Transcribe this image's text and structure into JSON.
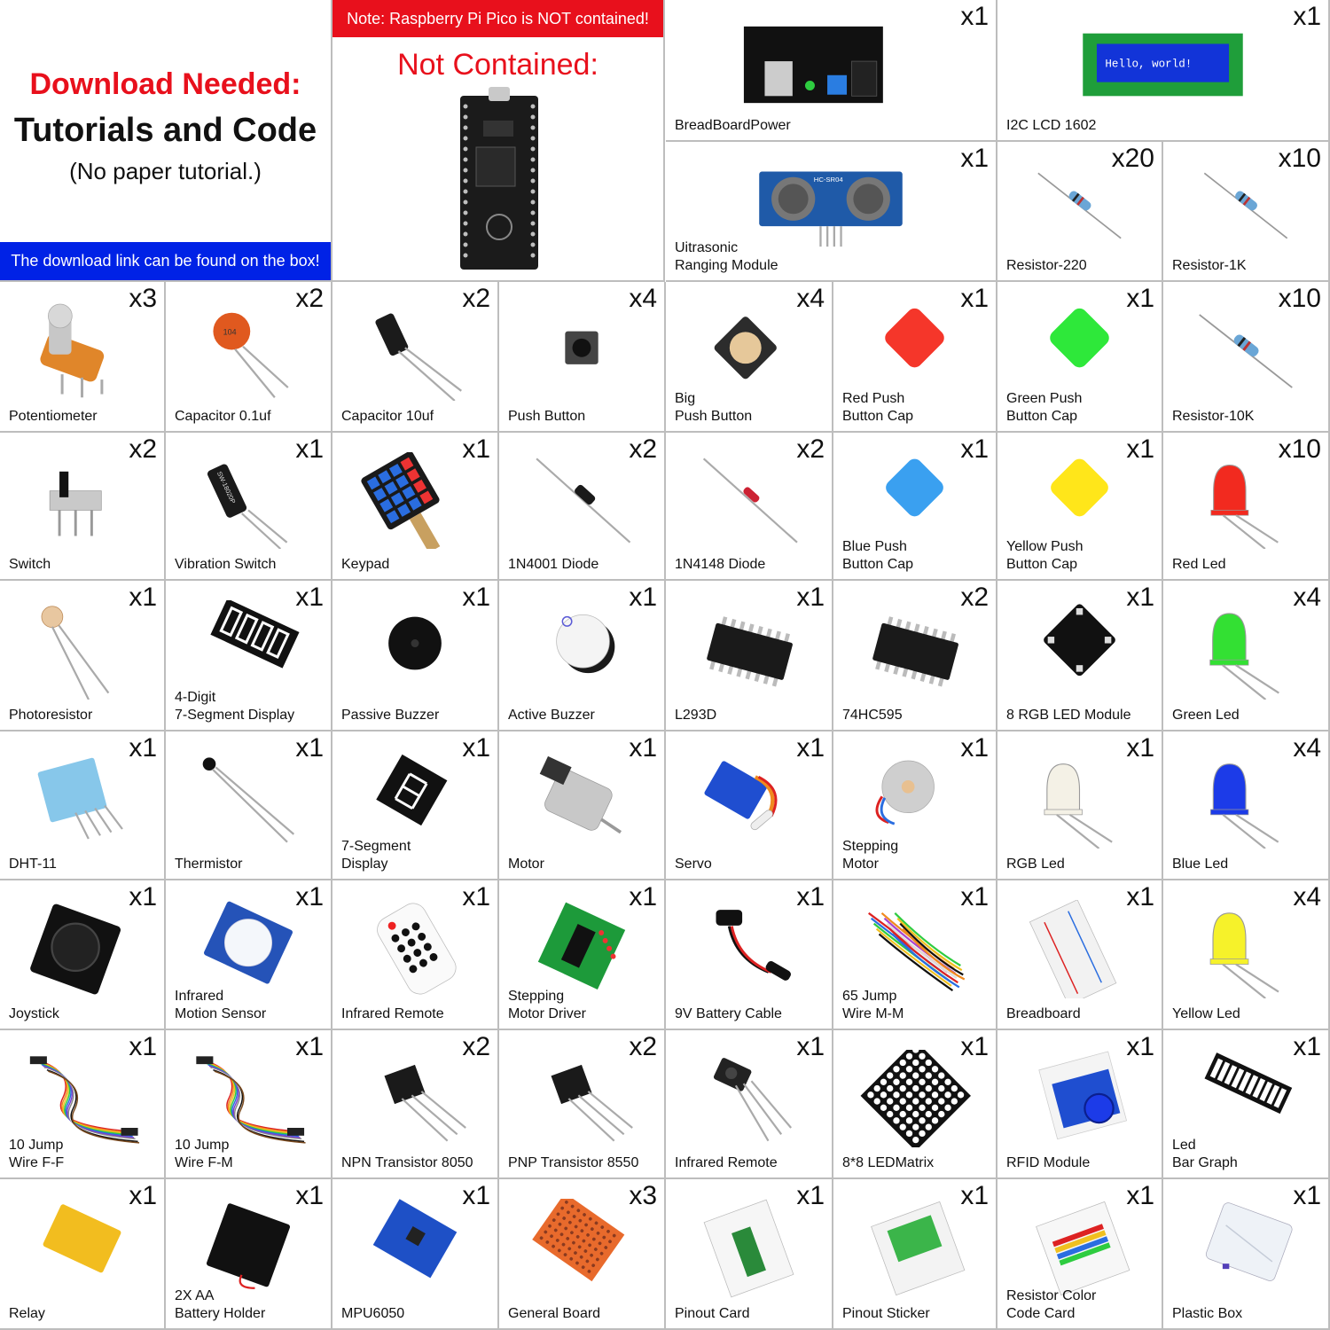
{
  "header": {
    "download_needed": "Download Needed:",
    "title": "Tutorials and Code",
    "subtitle": "(No paper tutorial.)",
    "download_link_note": "The download link can be found on the box!",
    "pico_note": "Note: Raspberry Pi Pico is NOT contained!",
    "not_contained": "Not Contained:"
  },
  "colors": {
    "accent_red": "#e8101c",
    "accent_blue": "#0022e6",
    "grid_line": "#bdbdbd"
  },
  "items": [
    {
      "label": "BreadBoardPower",
      "qty": "x1",
      "icon": "breadboard-power-icon"
    },
    {
      "label": "I2C LCD 1602",
      "qty": "x1",
      "icon": "lcd-icon",
      "screen_text": "Hello, world!"
    },
    {
      "label": "Uitrasonic\nRanging Module",
      "qty": "x1",
      "icon": "ultrasonic-icon",
      "chip_text": "HC-SR04"
    },
    {
      "label": "Resistor-220",
      "qty": "x20",
      "icon": "resistor-icon"
    },
    {
      "label": "Resistor-1K",
      "qty": "x10",
      "icon": "resistor-icon"
    },
    {
      "label": "Potentiometer",
      "qty": "x3",
      "icon": "potentiometer-icon"
    },
    {
      "label": "Capacitor 0.1uf",
      "qty": "x2",
      "icon": "ceramic-capacitor-icon",
      "mark": "104"
    },
    {
      "label": "Capacitor 10uf",
      "qty": "x2",
      "icon": "electrolytic-capacitor-icon"
    },
    {
      "label": "Push Button",
      "qty": "x4",
      "icon": "push-button-icon"
    },
    {
      "label": "Big\nPush Button",
      "qty": "x4",
      "icon": "big-push-button-icon"
    },
    {
      "label": "Red Push\nButton Cap",
      "qty": "x1",
      "icon": "button-cap-icon",
      "color": "#f5362a"
    },
    {
      "label": "Green Push\nButton Cap",
      "qty": "x1",
      "icon": "button-cap-icon",
      "color": "#2ee83a"
    },
    {
      "label": "Resistor-10K",
      "qty": "x10",
      "icon": "resistor-icon"
    },
    {
      "label": "Switch",
      "qty": "x2",
      "icon": "slide-switch-icon"
    },
    {
      "label": "Vibration Switch",
      "qty": "x1",
      "icon": "vibration-switch-icon",
      "mark": "SW-18020P"
    },
    {
      "label": "Keypad",
      "qty": "x1",
      "icon": "keypad-icon"
    },
    {
      "label": "1N4001 Diode",
      "qty": "x2",
      "icon": "diode-icon"
    },
    {
      "label": "1N4148 Diode",
      "qty": "x2",
      "icon": "small-diode-icon"
    },
    {
      "label": "Blue Push\nButton Cap",
      "qty": "x1",
      "icon": "button-cap-icon",
      "color": "#3aa0f0"
    },
    {
      "label": "Yellow Push\nButton Cap",
      "qty": "x1",
      "icon": "button-cap-icon",
      "color": "#ffe61a"
    },
    {
      "label": "Red Led",
      "qty": "x10",
      "icon": "led-icon",
      "color": "#f22a1f"
    },
    {
      "label": "Photoresistor",
      "qty": "x1",
      "icon": "photoresistor-icon"
    },
    {
      "label": "4-Digit\n7-Segment Display",
      "qty": "x1",
      "icon": "four-digit-display-icon"
    },
    {
      "label": "Passive Buzzer",
      "qty": "x1",
      "icon": "passive-buzzer-icon"
    },
    {
      "label": "Active Buzzer",
      "qty": "x1",
      "icon": "active-buzzer-icon"
    },
    {
      "label": "L293D",
      "qty": "x1",
      "icon": "ic-chip-icon"
    },
    {
      "label": "74HC595",
      "qty": "x2",
      "icon": "ic-chip-icon"
    },
    {
      "label": "8 RGB LED Module",
      "qty": "x1",
      "icon": "rgb-led-module-icon"
    },
    {
      "label": "Green Led",
      "qty": "x4",
      "icon": "led-icon",
      "color": "#33e033"
    },
    {
      "label": "DHT-11",
      "qty": "x1",
      "icon": "dht11-icon"
    },
    {
      "label": "Thermistor",
      "qty": "x1",
      "icon": "thermistor-icon"
    },
    {
      "label": "7-Segment\nDisplay",
      "qty": "x1",
      "icon": "seven-segment-icon"
    },
    {
      "label": "Motor",
      "qty": "x1",
      "icon": "dc-motor-icon"
    },
    {
      "label": "Servo",
      "qty": "x1",
      "icon": "servo-icon"
    },
    {
      "label": "Stepping\nMotor",
      "qty": "x1",
      "icon": "stepper-motor-icon"
    },
    {
      "label": "RGB Led",
      "qty": "x1",
      "icon": "led-icon",
      "color": "#f4f1e6"
    },
    {
      "label": "Blue Led",
      "qty": "x4",
      "icon": "led-icon",
      "color": "#1c3be8"
    },
    {
      "label": "Joystick",
      "qty": "x1",
      "icon": "joystick-icon"
    },
    {
      "label": "Infrared\nMotion Sensor",
      "qty": "x1",
      "icon": "pir-sensor-icon"
    },
    {
      "label": "Infrared Remote",
      "qty": "x1",
      "icon": "ir-remote-icon"
    },
    {
      "label": "Stepping\nMotor Driver",
      "qty": "x1",
      "icon": "stepper-driver-icon"
    },
    {
      "label": "9V Battery Cable",
      "qty": "x1",
      "icon": "battery-cable-icon"
    },
    {
      "label": "65 Jump\nWire M-M",
      "qty": "x1",
      "icon": "jump-wires-icon"
    },
    {
      "label": "Breadboard",
      "qty": "x1",
      "icon": "breadboard-icon"
    },
    {
      "label": "Yellow Led",
      "qty": "x4",
      "icon": "led-icon",
      "color": "#f6f22a"
    },
    {
      "label": "10 Jump\nWire F-F",
      "qty": "x1",
      "icon": "ribbon-wire-icon"
    },
    {
      "label": "10 Jump\nWire F-M",
      "qty": "x1",
      "icon": "ribbon-wire-icon"
    },
    {
      "label": "NPN Transistor 8050",
      "qty": "x2",
      "icon": "transistor-icon"
    },
    {
      "label": "PNP Transistor 8550",
      "qty": "x2",
      "icon": "transistor-icon"
    },
    {
      "label": "Infrared Remote",
      "qty": "x1",
      "icon": "ir-receiver-icon"
    },
    {
      "label": "8*8 LEDMatrix",
      "qty": "x1",
      "icon": "led-matrix-icon"
    },
    {
      "label": "RFID Module",
      "qty": "x1",
      "icon": "rfid-icon"
    },
    {
      "label": "Led\nBar Graph",
      "qty": "x1",
      "icon": "led-bar-graph-icon"
    },
    {
      "label": "Relay",
      "qty": "x1",
      "icon": "relay-icon"
    },
    {
      "label": "2X AA\nBattery Holder",
      "qty": "x1",
      "icon": "battery-holder-icon"
    },
    {
      "label": "MPU6050",
      "qty": "x1",
      "icon": "mpu6050-icon"
    },
    {
      "label": "General Board",
      "qty": "x3",
      "icon": "perfboard-icon"
    },
    {
      "label": "Pinout Card",
      "qty": "x1",
      "icon": "pinout-card-icon"
    },
    {
      "label": "Pinout Sticker",
      "qty": "x1",
      "icon": "pinout-sticker-icon"
    },
    {
      "label": "Resistor Color\nCode Card",
      "qty": "x1",
      "icon": "resistor-card-icon"
    },
    {
      "label": "Plastic Box",
      "qty": "x1",
      "icon": "plastic-box-icon"
    }
  ]
}
